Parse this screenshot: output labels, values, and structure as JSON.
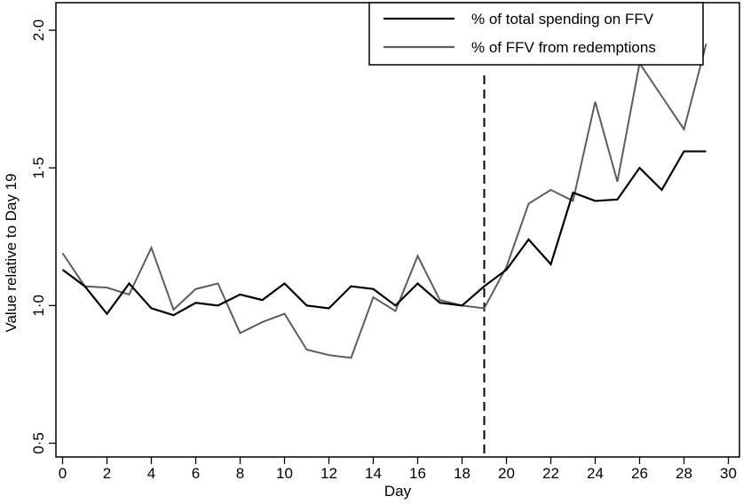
{
  "chart_data": {
    "type": "line",
    "xlabel": "Day",
    "ylabel": "Value relative to Day 19",
    "xlim": [
      -0.3,
      30.5
    ],
    "ylim": [
      0.45,
      2.1
    ],
    "xticks": [
      0,
      2,
      4,
      6,
      8,
      10,
      12,
      14,
      16,
      18,
      20,
      22,
      24,
      26,
      28,
      30
    ],
    "xtick_labels": [
      "0",
      "2",
      "4",
      "6",
      "8",
      "10",
      "12",
      "14",
      "16",
      "18",
      "20",
      "22",
      "24",
      "26",
      "28",
      "30"
    ],
    "yticks": [
      0.5,
      1.0,
      1.5,
      2.0
    ],
    "ytick_labels": [
      "0·5",
      "1·0",
      "1·5",
      "2·0"
    ],
    "vline": {
      "x": 19,
      "style": "dashed"
    },
    "legend_position": "top-right",
    "x": [
      0,
      1,
      2,
      3,
      4,
      5,
      6,
      7,
      8,
      9,
      10,
      11,
      12,
      13,
      14,
      15,
      16,
      17,
      18,
      19,
      20,
      21,
      22,
      23,
      24,
      25,
      26,
      27,
      28,
      29
    ],
    "series": [
      {
        "name": "% of total spending on FFV",
        "color": "#000000",
        "values": [
          1.13,
          1.07,
          0.97,
          1.08,
          0.99,
          0.965,
          1.01,
          1.0,
          1.04,
          1.02,
          1.08,
          1.0,
          0.99,
          1.07,
          1.06,
          1.0,
          1.08,
          1.01,
          1.0,
          1.07,
          1.13,
          1.24,
          1.15,
          1.41,
          1.38,
          1.385,
          1.5,
          1.42,
          1.56,
          1.56
        ]
      },
      {
        "name": "% of FFV from redemptions",
        "color": "#5b5e5c",
        "values": [
          1.19,
          1.07,
          1.065,
          1.04,
          1.21,
          0.985,
          1.06,
          1.08,
          0.9,
          0.94,
          0.97,
          0.84,
          0.82,
          0.81,
          1.03,
          0.98,
          1.18,
          1.02,
          1.0,
          0.99,
          1.14,
          1.37,
          1.42,
          1.38,
          1.74,
          1.45,
          1.88,
          1.76,
          1.64,
          1.95
        ]
      }
    ]
  }
}
